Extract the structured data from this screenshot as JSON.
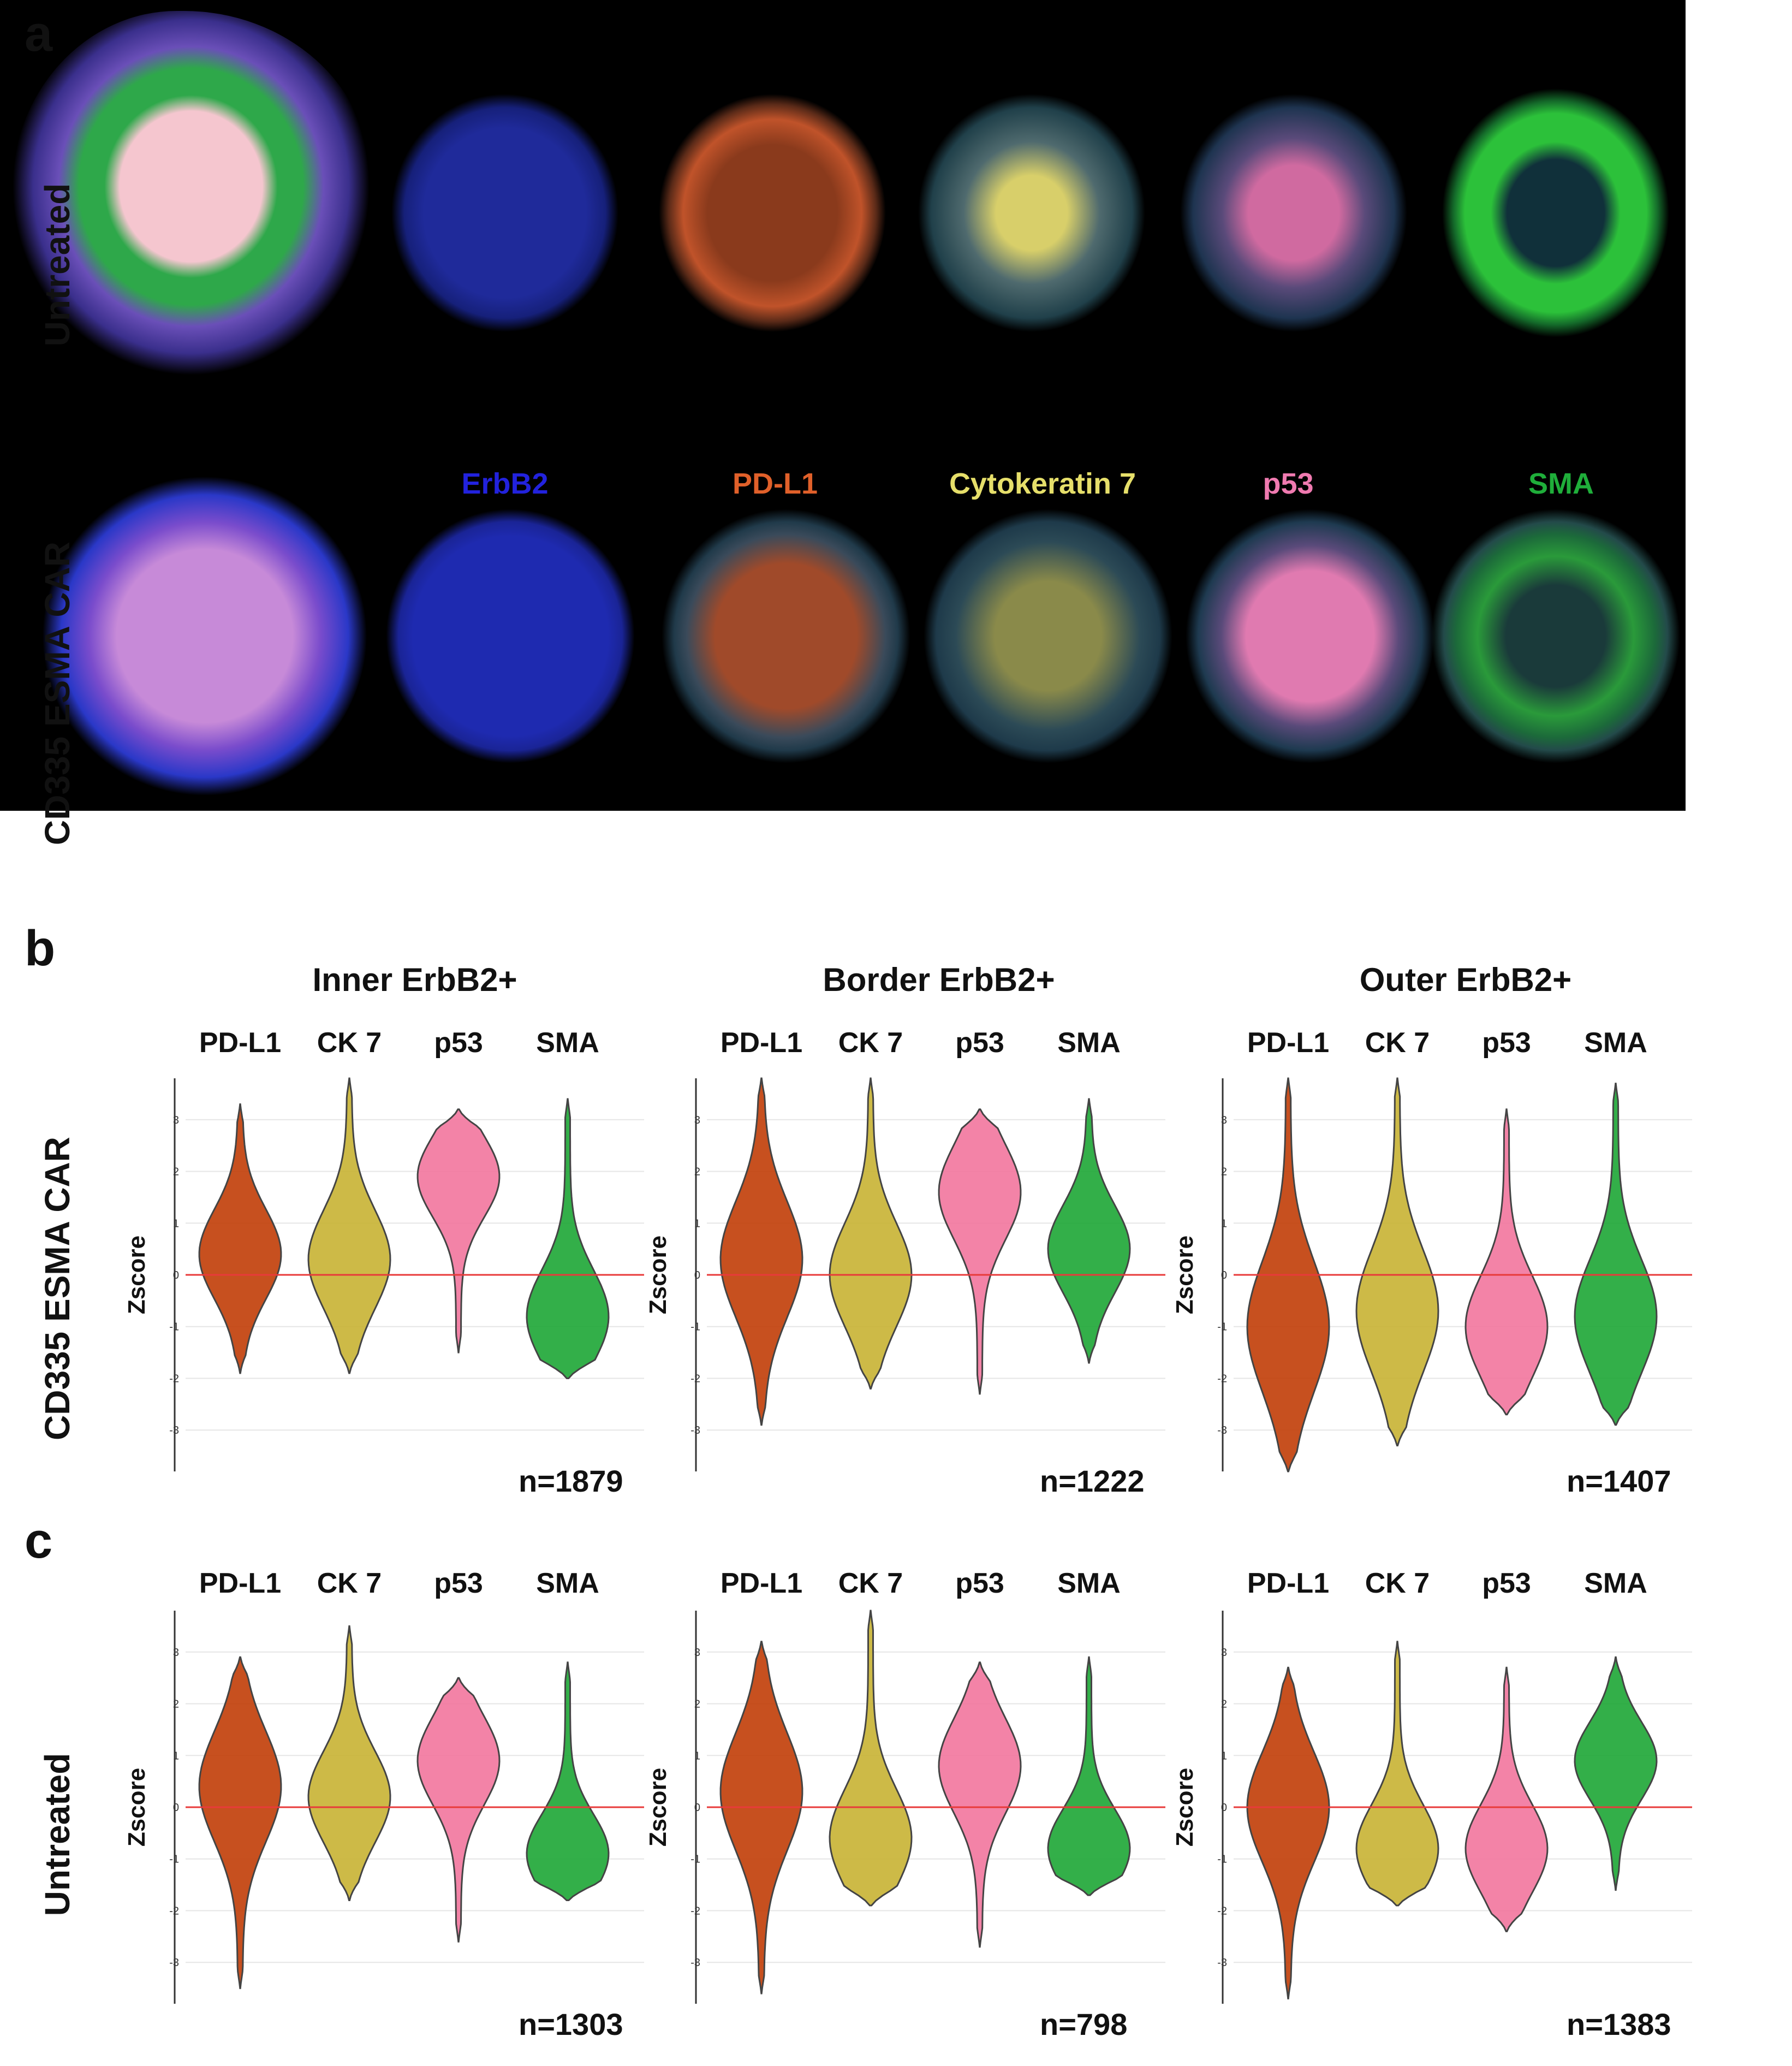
{
  "panel_letters": {
    "a": "a",
    "b": "b",
    "c": "c"
  },
  "image_panel": {
    "row_labels": [
      "Untreated",
      "CD335 ESMA CAR"
    ],
    "markers": [
      {
        "name": "ErbB2",
        "color": "#2222dd"
      },
      {
        "name": "PD-L1",
        "color": "#e0602a"
      },
      {
        "name": "Cytokeratin 7",
        "color": "#e6df6a"
      },
      {
        "name": "p53",
        "color": "#f07ab0"
      },
      {
        "name": "SMA",
        "color": "#1fae3a"
      }
    ]
  },
  "violin_panels": {
    "region_titles": [
      "Inner ErbB2+",
      "Border ErbB2+",
      "Outer ErbB2+"
    ],
    "marker_headers": [
      "PD-L1",
      "CK 7",
      "p53",
      "SMA"
    ],
    "row_b_label": "CD335 ESMA CAR",
    "row_c_label": "Untreated",
    "colors": {
      "PD-L1": "#c2410c",
      "CK 7": "#c9b437",
      "p53": "#f2789f",
      "SMA": "#22a83a"
    }
  },
  "chart_data": [
    {
      "type": "violin",
      "panel": "b",
      "group": "Inner ErbB2+",
      "ylabel": "Zscore",
      "yticks": [
        -3,
        -2,
        -1,
        0,
        1,
        2,
        3
      ],
      "ylim": [
        -3.8,
        3.8
      ],
      "reference_line": 0,
      "n_label": "n=1879",
      "series": [
        {
          "name": "PD-L1",
          "min": -1.9,
          "max": 3.3,
          "mode": 0.4
        },
        {
          "name": "CK 7",
          "min": -1.9,
          "max": 3.8,
          "mode": 0.3
        },
        {
          "name": "p53",
          "min": -1.5,
          "max": 3.2,
          "mode": 1.9
        },
        {
          "name": "SMA",
          "min": -2.0,
          "max": 3.4,
          "mode": -0.8
        }
      ]
    },
    {
      "type": "violin",
      "panel": "b",
      "group": "Border ErbB2+",
      "ylabel": "Zscore",
      "yticks": [
        -3,
        -2,
        -1,
        0,
        1,
        2,
        3
      ],
      "ylim": [
        -3.8,
        3.8
      ],
      "reference_line": 0,
      "n_label": "n=1222",
      "series": [
        {
          "name": "PD-L1",
          "min": -2.9,
          "max": 3.8,
          "mode": 0.3
        },
        {
          "name": "CK 7",
          "min": -2.2,
          "max": 3.8,
          "mode": 0.0
        },
        {
          "name": "p53",
          "min": -2.3,
          "max": 3.2,
          "mode": 1.6
        },
        {
          "name": "SMA",
          "min": -1.7,
          "max": 3.4,
          "mode": 0.5
        }
      ]
    },
    {
      "type": "violin",
      "panel": "b",
      "group": "Outer ErbB2+",
      "ylabel": "Zscore",
      "yticks": [
        -3,
        -2,
        -1,
        0,
        1,
        2,
        3
      ],
      "ylim": [
        -3.8,
        3.8
      ],
      "reference_line": 0,
      "n_label": "n=1407",
      "series": [
        {
          "name": "PD-L1",
          "min": -3.8,
          "max": 3.8,
          "mode": -1.0
        },
        {
          "name": "CK 7",
          "min": -3.3,
          "max": 3.8,
          "mode": -0.7
        },
        {
          "name": "p53",
          "min": -2.7,
          "max": 3.2,
          "mode": -1.0
        },
        {
          "name": "SMA",
          "min": -2.9,
          "max": 3.7,
          "mode": -0.8
        }
      ]
    },
    {
      "type": "violin",
      "panel": "c",
      "group": "Inner ErbB2+",
      "ylabel": "Zscore",
      "yticks": [
        -3,
        -2,
        -1,
        0,
        1,
        2,
        3
      ],
      "ylim": [
        -3.8,
        3.8
      ],
      "reference_line": 0,
      "n_label": "n=1303",
      "series": [
        {
          "name": "PD-L1",
          "min": -3.5,
          "max": 2.9,
          "mode": 0.4
        },
        {
          "name": "CK 7",
          "min": -1.8,
          "max": 3.5,
          "mode": 0.2
        },
        {
          "name": "p53",
          "min": -2.6,
          "max": 2.5,
          "mode": 0.9
        },
        {
          "name": "SMA",
          "min": -1.8,
          "max": 2.8,
          "mode": -0.9
        }
      ]
    },
    {
      "type": "violin",
      "panel": "c",
      "group": "Border ErbB2+",
      "ylabel": "Zscore",
      "yticks": [
        -3,
        -2,
        -1,
        0,
        1,
        2,
        3
      ],
      "ylim": [
        -3.8,
        3.8
      ],
      "reference_line": 0,
      "n_label": "n=798",
      "series": [
        {
          "name": "PD-L1",
          "min": -3.6,
          "max": 3.2,
          "mode": 0.3
        },
        {
          "name": "CK 7",
          "min": -1.9,
          "max": 3.8,
          "mode": -0.6
        },
        {
          "name": "p53",
          "min": -2.7,
          "max": 2.8,
          "mode": 0.8
        },
        {
          "name": "SMA",
          "min": -1.7,
          "max": 2.9,
          "mode": -0.8
        }
      ]
    },
    {
      "type": "violin",
      "panel": "c",
      "group": "Outer ErbB2+",
      "ylabel": "Zscore",
      "yticks": [
        -3,
        -2,
        -1,
        0,
        1,
        2,
        3
      ],
      "ylim": [
        -3.8,
        3.8
      ],
      "reference_line": 0,
      "n_label": "n=1383",
      "series": [
        {
          "name": "PD-L1",
          "min": -3.7,
          "max": 2.7,
          "mode": 0.0
        },
        {
          "name": "CK 7",
          "min": -1.9,
          "max": 3.2,
          "mode": -0.8
        },
        {
          "name": "p53",
          "min": -2.4,
          "max": 2.7,
          "mode": -0.8
        },
        {
          "name": "SMA",
          "min": -1.6,
          "max": 2.9,
          "mode": 0.9
        }
      ]
    }
  ]
}
